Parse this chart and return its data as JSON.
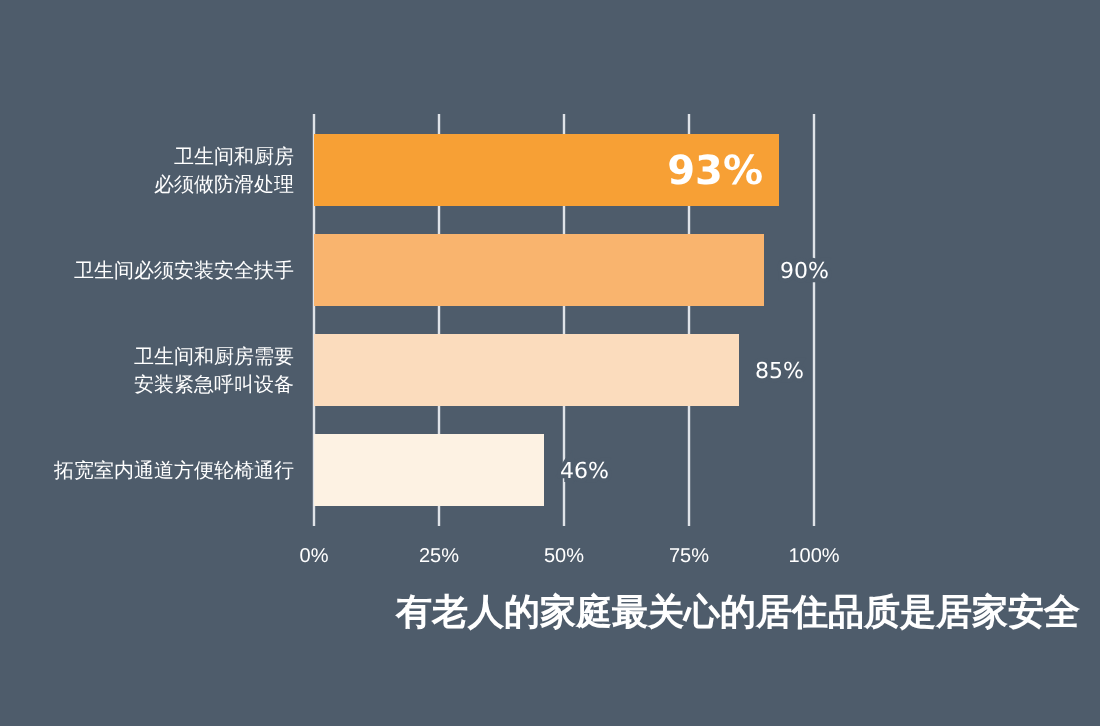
{
  "chart_data": {
    "type": "bar",
    "orientation": "horizontal",
    "title": "有老人的家庭最关心的居住品质是居家安全",
    "categories": [
      "卫生间和厨房必须做防滑处理",
      "卫生间必须安装安全扶手",
      "卫生间和厨房需要安装紧急呼叫设备",
      "拓宽室内通道方便轮椅通行"
    ],
    "values": [
      93,
      90,
      85,
      46
    ],
    "colors": [
      "#f7a035",
      "#f9b46e",
      "#fbdcbd",
      "#fdf2e3"
    ],
    "value_labels": [
      "93%",
      "90%",
      "85%",
      "46%"
    ],
    "xlim": [
      0,
      100
    ],
    "xticks": [
      {
        "value": 0,
        "label": "0%"
      },
      {
        "value": 25,
        "label": "25%"
      },
      {
        "value": 50,
        "label": "50%"
      },
      {
        "value": 75,
        "label": "75%"
      },
      {
        "value": 100,
        "label": "100%"
      }
    ],
    "grid": "x"
  }
}
